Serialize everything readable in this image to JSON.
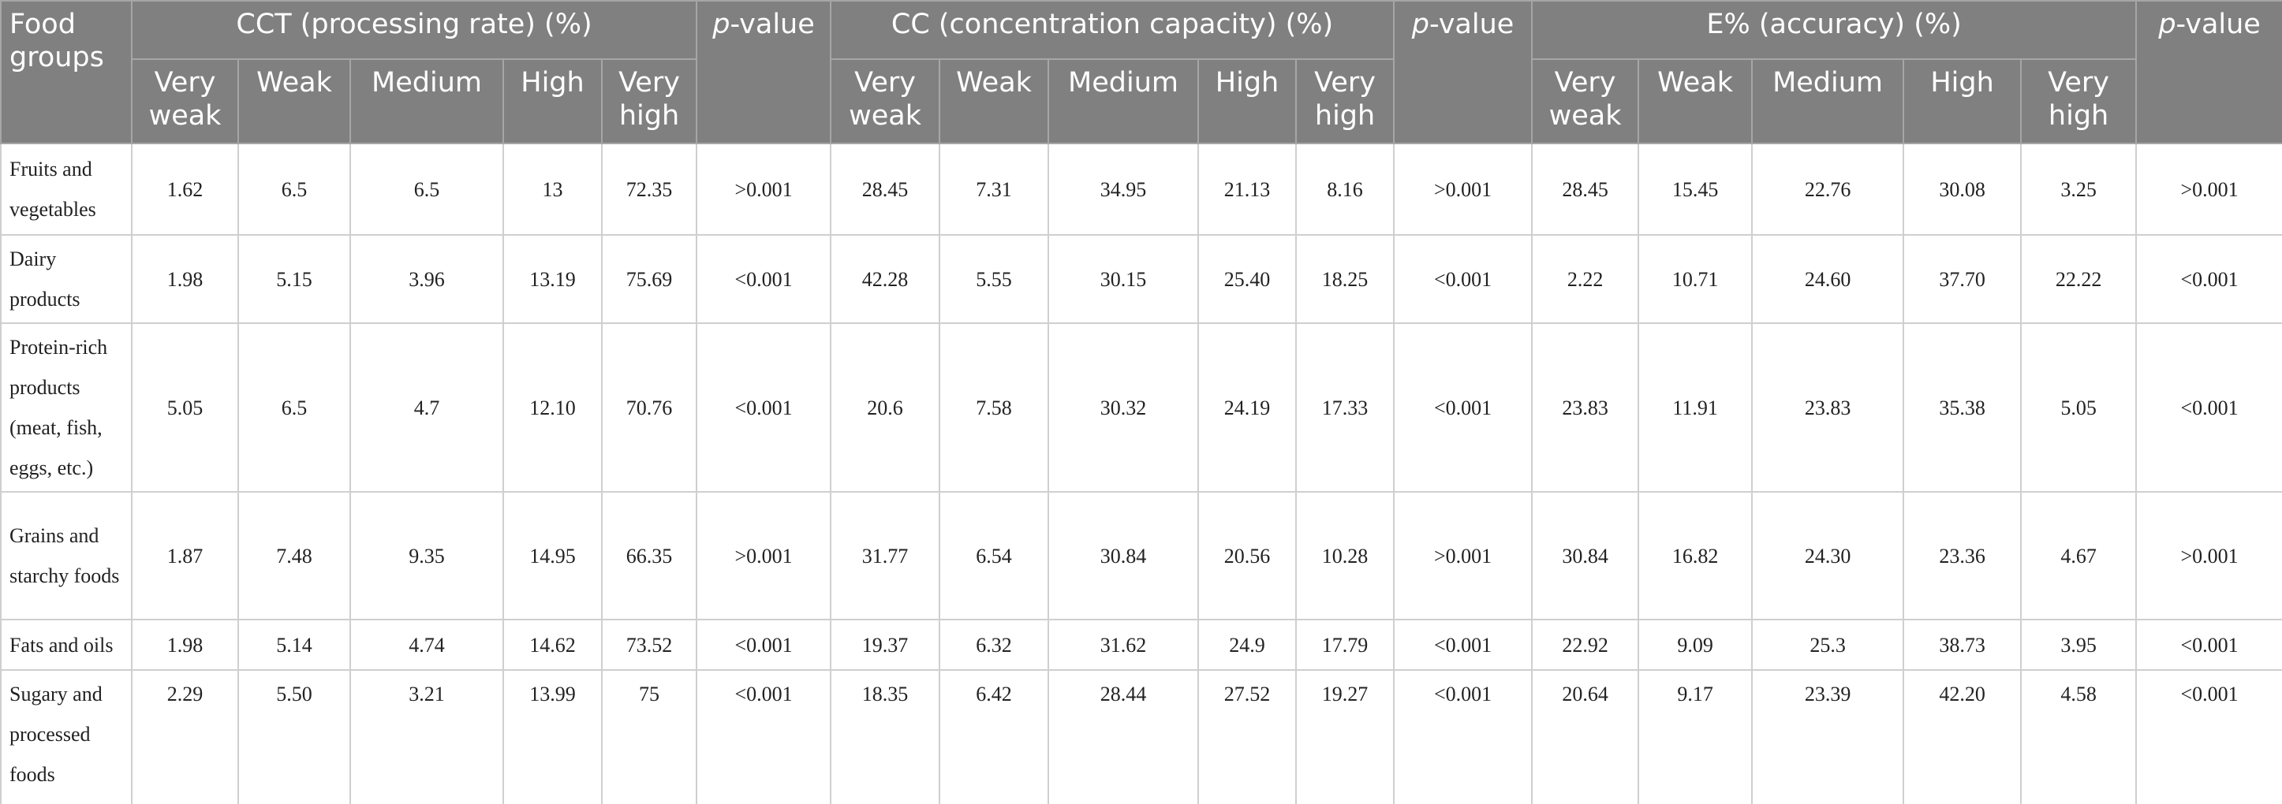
{
  "table": {
    "header": {
      "food_groups": "Food groups",
      "groups": [
        {
          "title": "CCT (processing rate) (%)",
          "levels": [
            "Very weak",
            "Weak",
            "Medium",
            "High",
            "Very high"
          ],
          "p_label": "p-value"
        },
        {
          "title": "CC (concentration capacity) (%)",
          "levels": [
            "Very weak",
            "Weak",
            "Medium",
            "High",
            "Very high"
          ],
          "p_label": "p-value"
        },
        {
          "title": "E% (accuracy) (%)",
          "levels": [
            "Very weak",
            "Weak",
            "Medium",
            "High",
            "Very high"
          ],
          "p_label": "p-value"
        }
      ]
    },
    "rows": [
      {
        "group": "Fruits and vegetables",
        "values": [
          "1.62",
          "6.5",
          "6.5",
          "13",
          "72.35",
          ">0.001",
          "28.45",
          "7.31",
          "34.95",
          "21.13",
          "8.16",
          ">0.001",
          "28.45",
          "15.45",
          "22.76",
          "30.08",
          "3.25",
          ">0.001"
        ]
      },
      {
        "group": "Dairy products",
        "values": [
          "1.98",
          "5.15",
          "3.96",
          "13.19",
          "75.69",
          "<0.001",
          "42.28",
          "5.55",
          "30.15",
          "25.40",
          "18.25",
          "<0.001",
          "2.22",
          "10.71",
          "24.60",
          "37.70",
          "22.22",
          "<0.001"
        ]
      },
      {
        "group": "Protein-rich products (meat, fish, eggs, etc.)",
        "values": [
          "5.05",
          "6.5",
          "4.7",
          "12.10",
          "70.76",
          "<0.001",
          "20.6",
          "7.58",
          "30.32",
          "24.19",
          "17.33",
          "<0.001",
          "23.83",
          "11.91",
          "23.83",
          "35.38",
          "5.05",
          "<0.001"
        ]
      },
      {
        "group": "Grains and starchy foods",
        "values": [
          "1.87",
          "7.48",
          "9.35",
          "14.95",
          "66.35",
          ">0.001",
          "31.77",
          "6.54",
          "30.84",
          "20.56",
          "10.28",
          ">0.001",
          "30.84",
          "16.82",
          "24.30",
          "23.36",
          "4.67",
          ">0.001"
        ]
      },
      {
        "group": "Fats and oils",
        "values": [
          "1.98",
          "5.14",
          "4.74",
          "14.62",
          "73.52",
          "<0.001",
          "19.37",
          "6.32",
          "31.62",
          "24.9",
          "17.79",
          "<0.001",
          "22.92",
          "9.09",
          "25.3",
          "38.73",
          "3.95",
          "<0.001"
        ]
      },
      {
        "group": "Sugary and processed foods",
        "values": [
          "2.29",
          "5.50",
          "3.21",
          "13.99",
          "75",
          "<0.001",
          "18.35",
          "6.42",
          "28.44",
          "27.52",
          "19.27",
          "<0.001",
          "20.64",
          "9.17",
          "23.39",
          "42.20",
          "4.58",
          "<0.001"
        ]
      }
    ]
  }
}
